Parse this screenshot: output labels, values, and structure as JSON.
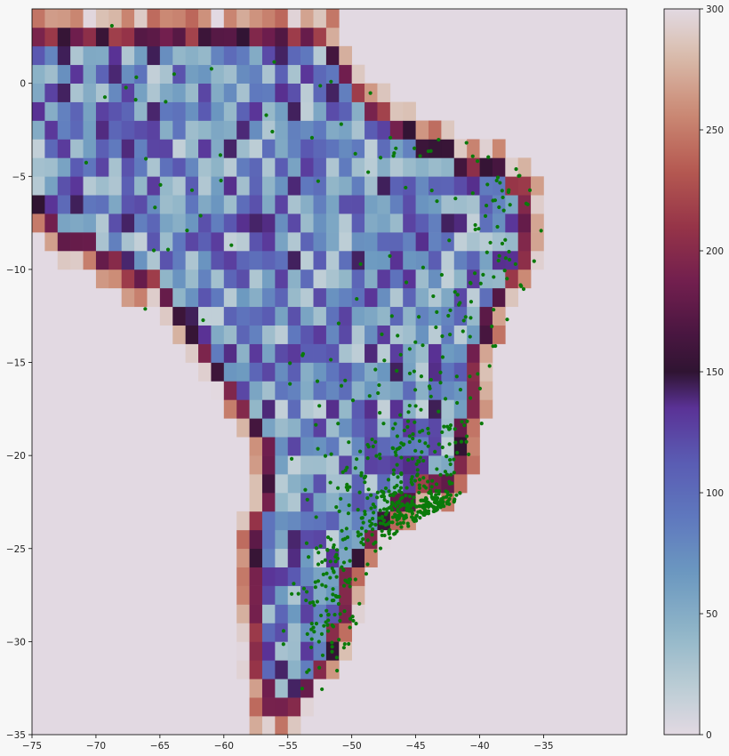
{
  "chart_data": {
    "type": "heatmap",
    "title": "",
    "xlabel": "",
    "ylabel": "",
    "xlim": [
      -75,
      -28.5
    ],
    "ylim": [
      -35,
      4
    ],
    "xticks": [
      -75,
      -70,
      -65,
      -60,
      -55,
      -50,
      -45,
      -40,
      -35
    ],
    "yticks": [
      0,
      -5,
      -10,
      -15,
      -20,
      -25,
      -30,
      -35
    ],
    "cell_size_deg": 1,
    "grid": false,
    "colormap": "twilight",
    "colorbar": {
      "range": [
        0,
        300
      ],
      "ticks": [
        0,
        50,
        100,
        150,
        200,
        250,
        300
      ]
    },
    "heatmap_background_value": 0,
    "points_color": "#0a7a0a",
    "approx_point_count": 650,
    "point_clusters": [
      {
        "lon": -43.3,
        "lat": -22.9,
        "sd": [
          1.2,
          0.6
        ],
        "n": 120
      },
      {
        "lon": -46.5,
        "lat": -23.3,
        "sd": [
          1.3,
          0.8
        ],
        "n": 110
      },
      {
        "lon": -44.5,
        "lat": -20.5,
        "sd": [
          2.2,
          1.5
        ],
        "n": 90
      },
      {
        "lon": -49.0,
        "lat": -22.0,
        "sd": [
          2.0,
          1.8
        ],
        "n": 70
      },
      {
        "lon": -52.0,
        "lat": -29.5,
        "sd": [
          1.6,
          1.8
        ],
        "n": 70
      },
      {
        "lon": -51.0,
        "lat": -26.0,
        "sd": [
          1.6,
          1.2
        ],
        "n": 40
      },
      {
        "lon": -38.5,
        "lat": -6.5,
        "sd": [
          1.8,
          3.2
        ],
        "n": 60
      },
      {
        "lon": -42.0,
        "lat": -16.0,
        "sd": [
          3.0,
          3.5
        ],
        "n": 50
      },
      {
        "lon": -49.0,
        "lat": -16.0,
        "sd": [
          3.0,
          2.5
        ],
        "n": 40
      },
      {
        "lon": -48.0,
        "lat": -3.0,
        "sd": [
          4.0,
          3.0
        ],
        "n": 20
      },
      {
        "lon": -63.0,
        "lat": -5.0,
        "sd": [
          6.0,
          5.0
        ],
        "n": 25
      }
    ]
  }
}
